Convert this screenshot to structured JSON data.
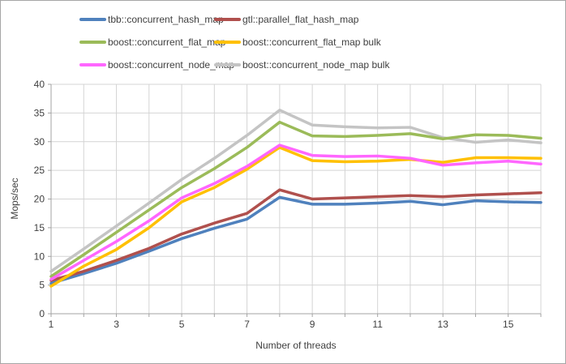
{
  "colors": {
    "background": "#FFFFFF",
    "frame_border": "#A6A6A6",
    "gridline": "#D4D4D4",
    "axis_line": "#A3A3A3",
    "text": "#3F3F3F"
  },
  "chart_data": {
    "type": "line",
    "title": "",
    "xlabel": "Number of threads",
    "ylabel": "Mops/sec",
    "x": [
      1,
      2,
      3,
      4,
      5,
      6,
      7,
      8,
      9,
      10,
      11,
      12,
      13,
      14,
      15,
      16
    ],
    "xlim": [
      1,
      16
    ],
    "x_tick_labels": [
      1,
      3,
      5,
      7,
      9,
      11,
      13,
      15
    ],
    "ylim": [
      0,
      40
    ],
    "y_ticks": [
      0,
      5,
      10,
      15,
      20,
      25,
      30,
      35,
      40
    ],
    "grid": true,
    "legend_position": "top",
    "series": [
      {
        "name": "tbb::concurrent_hash_map",
        "color": "#4F81BD",
        "values": [
          5.3,
          7.0,
          8.8,
          10.9,
          13.1,
          14.9,
          16.5,
          20.3,
          19.1,
          19.1,
          19.3,
          19.6,
          19.0,
          19.7,
          19.5,
          19.4
        ]
      },
      {
        "name": "gtl::parallel_flat_hash_map",
        "color": "#B0504D",
        "values": [
          5.8,
          7.4,
          9.3,
          11.4,
          13.9,
          15.8,
          17.5,
          21.6,
          20.0,
          20.2,
          20.4,
          20.6,
          20.4,
          20.7,
          20.9,
          21.1
        ]
      },
      {
        "name": "boost::concurrent_flat_map",
        "color": "#9BBB59",
        "values": [
          6.5,
          10.3,
          14.2,
          18.1,
          22.0,
          25.3,
          29.0,
          33.4,
          31.0,
          30.9,
          31.1,
          31.4,
          30.5,
          31.2,
          31.1,
          30.6
        ]
      },
      {
        "name": "boost::concurrent_flat_map bulk",
        "color": "#FFC000",
        "values": [
          4.8,
          8.3,
          11.2,
          15.0,
          19.5,
          22.0,
          25.2,
          29.0,
          26.7,
          26.5,
          26.6,
          26.9,
          26.4,
          27.2,
          27.2,
          27.1
        ]
      },
      {
        "name": "boost::concurrent_node_map",
        "color": "#FF66FF",
        "values": [
          6.0,
          9.3,
          12.6,
          16.2,
          20.2,
          22.7,
          25.7,
          29.4,
          27.6,
          27.4,
          27.5,
          27.1,
          25.9,
          26.3,
          26.6,
          26.1
        ]
      },
      {
        "name": "boost::concurrent_node_map bulk",
        "color": "#C4C4C4",
        "values": [
          7.4,
          11.3,
          15.3,
          19.3,
          23.4,
          27.1,
          31.1,
          35.5,
          32.9,
          32.6,
          32.4,
          32.5,
          30.7,
          29.9,
          30.3,
          29.8
        ]
      }
    ],
    "draw_order": [
      5,
      2,
      0,
      1,
      3,
      4
    ]
  }
}
